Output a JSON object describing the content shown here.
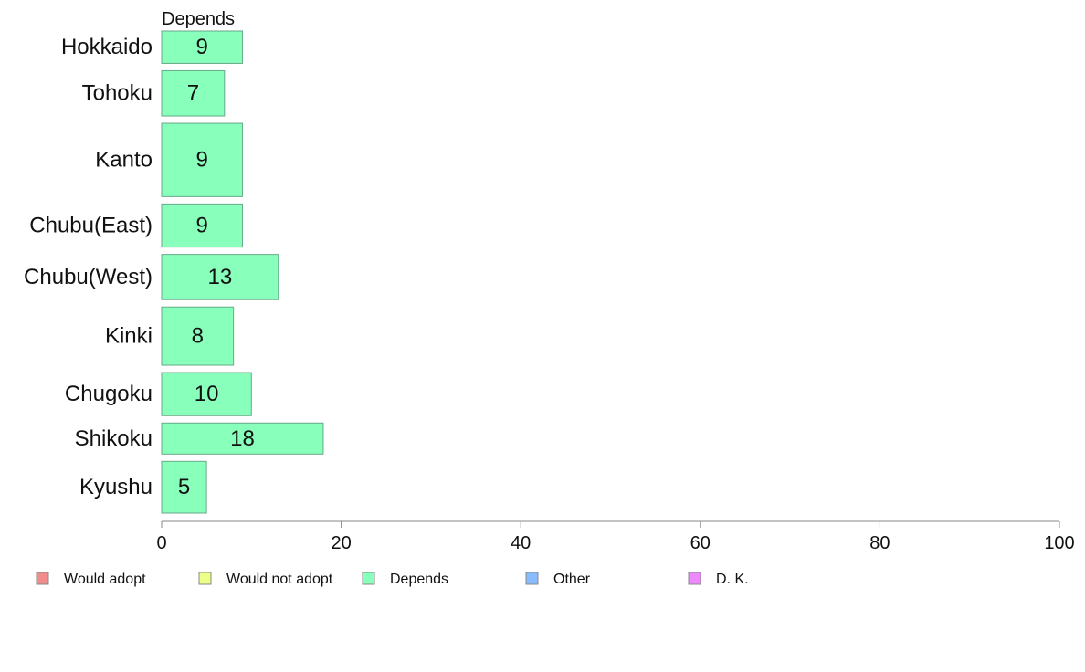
{
  "chart_data": {
    "type": "bar",
    "orientation": "horizontal",
    "panel_label": "Depends",
    "categories": [
      "Hokkaido",
      "Tohoku",
      "Kanto",
      "Chubu(East)",
      "Chubu(West)",
      "Kinki",
      "Chugoku",
      "Shikoku",
      "Kyushu"
    ],
    "series": [
      {
        "name": "Depends",
        "values": [
          9,
          7,
          9,
          9,
          13,
          8,
          10,
          18,
          5
        ],
        "labels": [
          "9",
          "7",
          "9",
          "9",
          "13",
          "8",
          "10",
          "18",
          "5"
        ]
      }
    ],
    "band_weights": [
      0.75,
      1.05,
      1.7,
      1.0,
      1.05,
      1.35,
      1.0,
      0.72,
      1.2
    ],
    "xlim": [
      0,
      100
    ],
    "xticks": [
      0,
      20,
      40,
      60,
      80,
      100
    ],
    "xtick_labels": [
      "0",
      "20",
      "40",
      "60",
      "80",
      "100"
    ],
    "grid": false,
    "legend_position": "bottom",
    "legend": [
      {
        "label": "Would adopt",
        "color": "#f28b8b"
      },
      {
        "label": "Would not adopt",
        "color": "#eeff88"
      },
      {
        "label": "Depends",
        "color": "#88ffbb"
      },
      {
        "label": "Other",
        "color": "#88bbff"
      },
      {
        "label": "D. K.",
        "color": "#ee88ff"
      }
    ],
    "bar_color": "#88ffbb",
    "bar_stroke": "#66aa88"
  }
}
